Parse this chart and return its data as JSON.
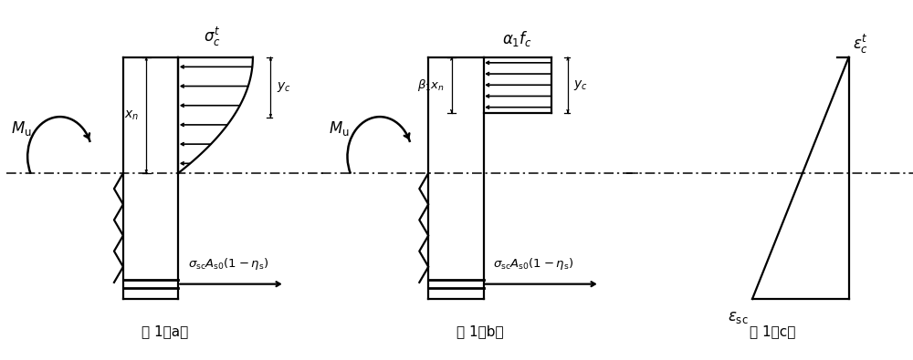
{
  "fig_width": 10.0,
  "fig_height": 3.95,
  "background_color": "#ffffff",
  "line_color": "#000000",
  "caption_a": "图 1（a）",
  "caption_b": "图 1（b）",
  "caption_c": "图 1（c）",
  "label_sigma_c": "$\\sigma^{t}_{c}$",
  "label_alpha_fc": "$\\alpha_1 f_c$",
  "label_eps_ct": "$\\varepsilon^{t}_{c}$",
  "label_yc": "$y_c$",
  "label_xn": "$x_n$",
  "label_beta_xn": "$\\beta_1 x_n$",
  "label_Mu": "$M_{\\rm u}$",
  "label_sigma_sc": "$\\sigma_{\\rm sc}A_{\\rm s0}(1-\\eta_{\\rm s})$",
  "label_eps_sc": "$\\varepsilon_{\\rm sc}$"
}
